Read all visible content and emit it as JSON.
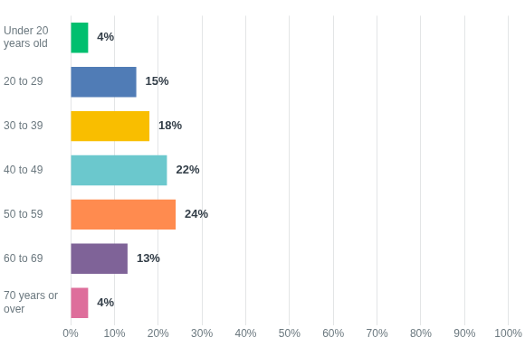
{
  "chart_data": {
    "type": "bar",
    "orientation": "horizontal",
    "categories": [
      "Under 20 years old",
      "20 to 29",
      "30 to 39",
      "40 to 49",
      "50 to 59",
      "60 to 69",
      "70 years or over"
    ],
    "values": [
      4,
      15,
      18,
      22,
      24,
      13,
      4
    ],
    "value_labels": [
      "4%",
      "15%",
      "18%",
      "22%",
      "24%",
      "13%",
      "4%"
    ],
    "colors": [
      "#00bf6f",
      "#507cb6",
      "#f9be00",
      "#6bc8cd",
      "#ff8b4f",
      "#7f6398",
      "#de6e9b"
    ],
    "xlim": [
      0,
      100
    ],
    "xticks": [
      {
        "value": 0,
        "label": "0%"
      },
      {
        "value": 10,
        "label": "10%"
      },
      {
        "value": 20,
        "label": "20%"
      },
      {
        "value": 30,
        "label": "30%"
      },
      {
        "value": 40,
        "label": "40%"
      },
      {
        "value": 50,
        "label": "50%"
      },
      {
        "value": 60,
        "label": "60%"
      },
      {
        "value": 70,
        "label": "70%"
      },
      {
        "value": 80,
        "label": "80%"
      },
      {
        "value": 90,
        "label": "90%"
      },
      {
        "value": 100,
        "label": "100%"
      }
    ],
    "grid": true,
    "data_labels": true
  }
}
